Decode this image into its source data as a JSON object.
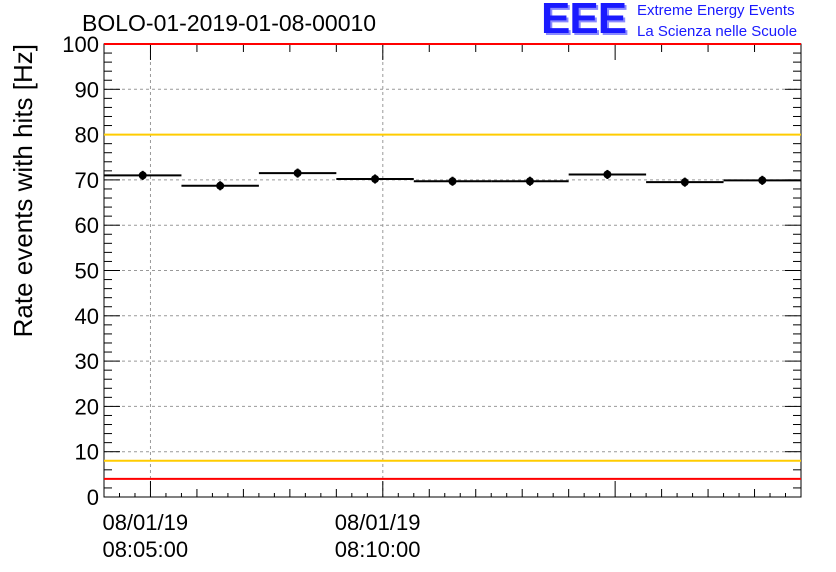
{
  "header": {
    "run_title": "BOLO-01-2019-01-08-00010"
  },
  "logo": {
    "mark": "EEE",
    "line1": "Extreme Energy Events",
    "line2": "La Scienza nelle Scuole",
    "color": "#1a1aff"
  },
  "colors": {
    "alarm_line": "#ff0000",
    "warning_line": "#ffcc00",
    "markers": "#000000",
    "grid": "#999999"
  },
  "chart_data": {
    "type": "scatter",
    "title": "BOLO-01-2019-01-08-00010",
    "ylabel": "Rate events with hits [Hz]",
    "xlabel": "",
    "ylim": [
      0,
      100
    ],
    "yticks": [
      0,
      10,
      20,
      30,
      40,
      50,
      60,
      70,
      80,
      90,
      100
    ],
    "xticks": [
      {
        "date": "08/01/19",
        "time": "08:05:00"
      },
      {
        "date": "08/01/19",
        "time": "08:10:00"
      }
    ],
    "grid": true,
    "x_unit": "seconds after 08:05:00",
    "points": [
      {
        "x_start": -60,
        "x_end": 40,
        "y": 71.0,
        "yerr": 1.0
      },
      {
        "x_start": 40,
        "x_end": 140,
        "y": 68.7,
        "yerr": 1.0
      },
      {
        "x_start": 140,
        "x_end": 240,
        "y": 71.5,
        "yerr": 1.0
      },
      {
        "x_start": 240,
        "x_end": 340,
        "y": 70.2,
        "yerr": 1.0
      },
      {
        "x_start": 340,
        "x_end": 440,
        "y": 69.7,
        "yerr": 1.0
      },
      {
        "x_start": 440,
        "x_end": 540,
        "y": 69.7,
        "yerr": 1.0
      },
      {
        "x_start": 540,
        "x_end": 640,
        "y": 71.2,
        "yerr": 1.0
      },
      {
        "x_start": 640,
        "x_end": 740,
        "y": 69.5,
        "yerr": 1.0
      },
      {
        "x_start": 740,
        "x_end": 840,
        "y": 69.9,
        "yerr": 1.0
      }
    ],
    "reference_lines": [
      {
        "y": 100,
        "color": "#ff0000"
      },
      {
        "y": 80,
        "color": "#ffcc00"
      },
      {
        "y": 8,
        "color": "#ffcc00"
      },
      {
        "y": 4,
        "color": "#ff0000"
      }
    ]
  }
}
